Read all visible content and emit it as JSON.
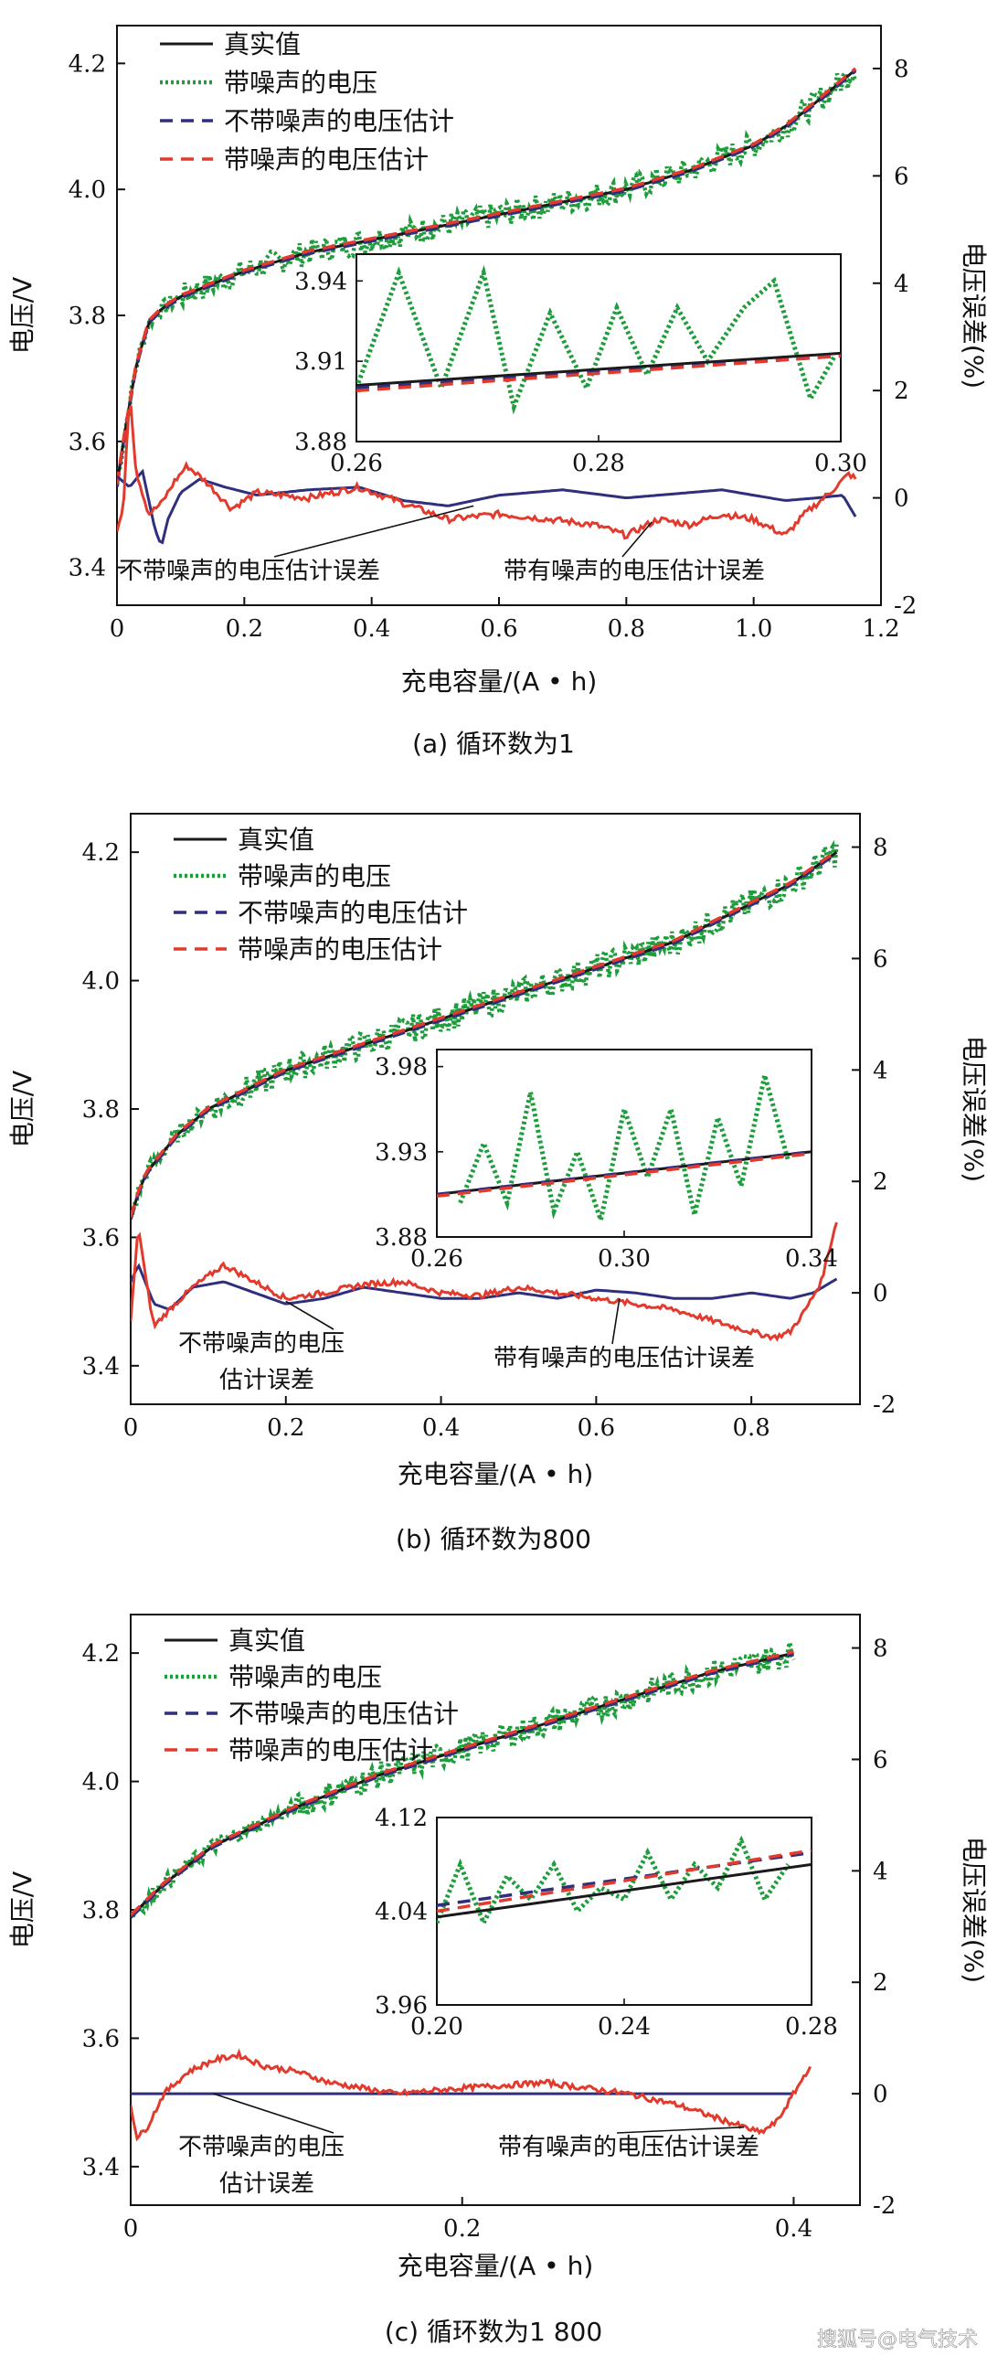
{
  "watermark": "搜狐号@电气技术",
  "chart_data": [
    {
      "type": "line",
      "caption": "(a)  循环数为1",
      "xlabel": "充电容量/(A • h)",
      "ylabel": "电压/V",
      "ylabel_right": "电压误差(%)",
      "xlim": [
        0,
        1.2
      ],
      "ylim": [
        3.34,
        4.26
      ],
      "y2lim": [
        -2,
        8.8
      ],
      "xticks": [
        "0",
        "0.2",
        "0.4",
        "0.6",
        "0.8",
        "1.0",
        "1.2"
      ],
      "yticks": [
        "3.4",
        "3.6",
        "3.8",
        "4.0",
        "4.2"
      ],
      "y2ticks": [
        "-2",
        "0",
        "2",
        "4",
        "6",
        "8"
      ],
      "legend": {
        "placement": "top-left",
        "entries": [
          "真实值",
          "带噪声的电压",
          "不带噪声的电压估计",
          "带噪声的电压估计"
        ]
      },
      "voltage": {
        "x": [
          0,
          0.01,
          0.02,
          0.03,
          0.05,
          0.07,
          0.1,
          0.15,
          0.2,
          0.3,
          0.4,
          0.5,
          0.6,
          0.7,
          0.8,
          0.9,
          1.0,
          1.05,
          1.1,
          1.16
        ],
        "y": [
          3.53,
          3.6,
          3.66,
          3.72,
          3.79,
          3.81,
          3.83,
          3.85,
          3.87,
          3.9,
          3.92,
          3.94,
          3.96,
          3.98,
          4.0,
          4.03,
          4.07,
          4.1,
          4.14,
          4.19
        ],
        "noise_amplitude": 0.02
      },
      "error_curves": [
        {
          "label": "不带噪声的电压估计误差",
          "x": [
            0,
            0.02,
            0.04,
            0.06,
            0.07,
            0.08,
            0.1,
            0.13,
            0.17,
            0.22,
            0.3,
            0.38,
            0.45,
            0.52,
            0.6,
            0.7,
            0.8,
            0.9,
            0.95,
            1.0,
            1.05,
            1.1,
            1.14,
            1.16
          ],
          "y": [
            0.4,
            0.2,
            0.5,
            -0.6,
            -0.9,
            -0.4,
            0.1,
            0.35,
            0.2,
            0.05,
            0.15,
            0.2,
            -0.05,
            -0.15,
            0.05,
            0.15,
            0.0,
            0.1,
            0.15,
            0.05,
            -0.05,
            0.0,
            0.05,
            -0.35
          ]
        },
        {
          "label": "带有噪声的电压估计误差",
          "x": [
            0,
            0.01,
            0.02,
            0.03,
            0.05,
            0.07,
            0.09,
            0.11,
            0.14,
            0.18,
            0.22,
            0.3,
            0.38,
            0.45,
            0.52,
            0.6,
            0.68,
            0.75,
            0.8,
            0.85,
            0.9,
            0.95,
            1.0,
            1.05,
            1.08,
            1.12,
            1.15,
            1.16
          ],
          "y": [
            -0.6,
            -0.2,
            2.0,
            0.5,
            -0.3,
            -0.1,
            0.3,
            0.6,
            0.3,
            -0.2,
            0.1,
            0.0,
            0.2,
            -0.1,
            -0.4,
            -0.3,
            -0.4,
            -0.5,
            -0.7,
            -0.4,
            -0.5,
            -0.3,
            -0.4,
            -0.7,
            -0.3,
            0.1,
            0.45,
            0.35
          ],
          "noise_amplitude": 0.06
        }
      ],
      "annotations": [
        {
          "text": "不带噪声的电压估计误差",
          "target_x": 0.56,
          "target_y2": -0.15
        },
        {
          "text": "带有噪声的电压估计误差",
          "target_x": 0.84,
          "target_y2": -0.45
        }
      ],
      "inset": {
        "xlim": [
          0.26,
          0.3
        ],
        "ylim": [
          3.88,
          3.95
        ],
        "xticks": [
          "0.26",
          "0.28",
          "0.30"
        ],
        "yticks": [
          "3.88",
          "3.91",
          "3.94"
        ],
        "true": {
          "x": [
            0.26,
            0.3
          ],
          "y": [
            3.901,
            3.913
          ]
        },
        "noisy": {
          "x": [
            0.26,
            0.2635,
            0.267,
            0.2705,
            0.273,
            0.276,
            0.279,
            0.2815,
            0.284,
            0.2865,
            0.289,
            0.292,
            0.2945,
            0.2975,
            0.2995
          ],
          "y": [
            3.9,
            3.943,
            3.9,
            3.943,
            3.893,
            3.928,
            3.9,
            3.93,
            3.905,
            3.93,
            3.91,
            3.93,
            3.94,
            3.896,
            3.912
          ]
        },
        "est_clean": {
          "x": [
            0.26,
            0.3
          ],
          "y": [
            3.9,
            3.912
          ]
        },
        "est_noisy": {
          "x": [
            0.26,
            0.3
          ],
          "y": [
            3.899,
            3.912
          ]
        }
      }
    },
    {
      "type": "line",
      "caption": "(b)  循环数为800",
      "xlabel": "充电容量/(A • h)",
      "ylabel": "电压/V",
      "ylabel_right": "电压误差(%)",
      "xlim": [
        0,
        0.94
      ],
      "ylim": [
        3.34,
        4.26
      ],
      "y2lim": [
        -2,
        8.6
      ],
      "xticks": [
        "0",
        "0.2",
        "0.4",
        "0.6",
        "0.8"
      ],
      "yticks": [
        "3.4",
        "3.6",
        "3.8",
        "4.0",
        "4.2"
      ],
      "y2ticks": [
        "-2",
        "0",
        "2",
        "4",
        "6",
        "8"
      ],
      "legend": {
        "placement": "top-left",
        "entries": [
          "真实值",
          "带噪声的电压",
          "不带噪声的电压估计",
          "带噪声的电压估计"
        ]
      },
      "voltage": {
        "x": [
          0,
          0.01,
          0.02,
          0.04,
          0.06,
          0.08,
          0.1,
          0.15,
          0.2,
          0.3,
          0.4,
          0.5,
          0.6,
          0.7,
          0.8,
          0.85,
          0.91
        ],
        "y": [
          3.63,
          3.67,
          3.7,
          3.73,
          3.76,
          3.78,
          3.8,
          3.83,
          3.86,
          3.9,
          3.94,
          3.98,
          4.02,
          4.06,
          4.12,
          4.15,
          4.2
        ],
        "noise_amplitude": 0.022
      },
      "error_curves": [
        {
          "label": "不带噪声的电压估计误差",
          "x": [
            0,
            0.01,
            0.03,
            0.05,
            0.08,
            0.12,
            0.16,
            0.2,
            0.25,
            0.3,
            0.35,
            0.4,
            0.45,
            0.5,
            0.55,
            0.6,
            0.65,
            0.7,
            0.75,
            0.8,
            0.85,
            0.88,
            0.91
          ],
          "y": [
            0.2,
            0.5,
            -0.2,
            -0.3,
            0.1,
            0.2,
            0.0,
            -0.2,
            -0.1,
            0.1,
            0.0,
            -0.1,
            -0.1,
            0.0,
            -0.1,
            0.05,
            0.0,
            -0.1,
            -0.1,
            0.0,
            -0.1,
            0.0,
            0.25
          ]
        },
        {
          "label": "带有噪声的电压估计误差",
          "x": [
            0,
            0.01,
            0.02,
            0.03,
            0.05,
            0.08,
            0.12,
            0.16,
            0.2,
            0.25,
            0.3,
            0.35,
            0.4,
            0.45,
            0.5,
            0.55,
            0.6,
            0.65,
            0.7,
            0.75,
            0.8,
            0.83,
            0.85,
            0.87,
            0.89,
            0.91
          ],
          "y": [
            -0.5,
            1.2,
            0.2,
            -0.6,
            -0.3,
            0.1,
            0.5,
            0.2,
            -0.1,
            0.0,
            0.15,
            0.2,
            0.0,
            -0.05,
            0.1,
            0.0,
            -0.1,
            -0.2,
            -0.3,
            -0.5,
            -0.7,
            -0.8,
            -0.7,
            -0.3,
            0.2,
            1.3
          ],
          "noise_amplitude": 0.05
        }
      ],
      "annotations": [
        {
          "text": "不带噪声的电压",
          "text2": "估计误差",
          "target_x": 0.2,
          "target_y2": -0.15
        },
        {
          "text": "带有噪声的电压估计误差",
          "target_x": 0.63,
          "target_y2": -0.1
        }
      ],
      "inset": {
        "xlim": [
          0.26,
          0.34
        ],
        "ylim": [
          3.88,
          3.99
        ],
        "xticks": [
          "0.26",
          "0.30",
          "0.34"
        ],
        "yticks": [
          "3.88",
          "3.93",
          "3.98"
        ],
        "true": {
          "x": [
            0.26,
            0.34
          ],
          "y": [
            3.905,
            3.93
          ]
        },
        "noisy": {
          "x": [
            0.265,
            0.27,
            0.275,
            0.28,
            0.285,
            0.29,
            0.295,
            0.3,
            0.305,
            0.31,
            0.315,
            0.32,
            0.325,
            0.33,
            0.335
          ],
          "y": [
            3.9,
            3.935,
            3.9,
            3.965,
            3.895,
            3.93,
            3.89,
            3.955,
            3.915,
            3.955,
            3.893,
            3.95,
            3.91,
            3.975,
            3.925
          ]
        },
        "est_clean": {
          "x": [
            0.26,
            0.34
          ],
          "y": [
            3.905,
            3.93
          ]
        },
        "est_noisy": {
          "x": [
            0.26,
            0.34
          ],
          "y": [
            3.904,
            3.929
          ]
        }
      }
    },
    {
      "type": "line",
      "caption": "(c)  循环数为1 800",
      "xlabel": "充电容量/(A • h)",
      "ylabel": "电压/V",
      "ylabel_right": "电压误差(%)",
      "xlim": [
        0,
        0.44
      ],
      "ylim": [
        3.34,
        4.26
      ],
      "y2lim": [
        -2,
        8.6
      ],
      "xticks": [
        "0",
        "0.2",
        "0.4"
      ],
      "yticks": [
        "3.4",
        "3.6",
        "3.8",
        "4.0",
        "4.2"
      ],
      "y2ticks": [
        "-2",
        "0",
        "2",
        "4",
        "6",
        "8"
      ],
      "legend": {
        "placement": "top-left",
        "entries": [
          "真实值",
          "带噪声的电压",
          "不带噪声的电压估计",
          "带噪声的电压估计"
        ]
      },
      "voltage": {
        "x": [
          0,
          0.02,
          0.05,
          0.1,
          0.15,
          0.2,
          0.25,
          0.3,
          0.35,
          0.4
        ],
        "y": [
          3.79,
          3.84,
          3.9,
          3.96,
          4.01,
          4.05,
          4.09,
          4.13,
          4.17,
          4.2
        ],
        "noise_amplitude": 0.02
      },
      "error_curves": [
        {
          "label": "不带噪声的电压估计误差",
          "x": [
            0,
            0.05,
            0.1,
            0.15,
            0.2,
            0.25,
            0.3,
            0.35,
            0.4
          ],
          "y": [
            0.0,
            0.0,
            0.0,
            0.0,
            0.0,
            0.0,
            0.0,
            0.0,
            0.0
          ]
        },
        {
          "label": "带有噪声的电压估计误差",
          "x": [
            0,
            0.004,
            0.01,
            0.02,
            0.035,
            0.05,
            0.065,
            0.08,
            0.1,
            0.12,
            0.14,
            0.16,
            0.2,
            0.25,
            0.3,
            0.33,
            0.35,
            0.37,
            0.38,
            0.39,
            0.4,
            0.41
          ],
          "y": [
            -0.2,
            -0.8,
            -0.6,
            0.0,
            0.4,
            0.6,
            0.7,
            0.5,
            0.4,
            0.2,
            0.1,
            0.0,
            0.1,
            0.2,
            0.0,
            -0.2,
            -0.4,
            -0.6,
            -0.7,
            -0.5,
            0.0,
            0.5
          ],
          "noise_amplitude": 0.05
        }
      ],
      "annotations": [
        {
          "text": "不带噪声的电压",
          "text2": "估计误差",
          "target_x": 0.05,
          "target_y2": 0.0
        },
        {
          "text": "带有噪声的电压估计误差",
          "target_x": 0.37,
          "target_y2": -0.6
        }
      ],
      "inset": {
        "xlim": [
          0.2,
          0.28
        ],
        "ylim": [
          3.96,
          4.12
        ],
        "xticks": [
          "0.20",
          "0.24",
          "0.28"
        ],
        "yticks": [
          "3.96",
          "4.04",
          "4.12"
        ],
        "true": {
          "x": [
            0.2,
            0.28
          ],
          "y": [
            4.035,
            4.08
          ]
        },
        "noisy": {
          "x": [
            0.2,
            0.205,
            0.21,
            0.215,
            0.22,
            0.225,
            0.23,
            0.235,
            0.24,
            0.245,
            0.25,
            0.255,
            0.26,
            0.265,
            0.27,
            0.275
          ],
          "y": [
            4.03,
            4.08,
            4.03,
            4.07,
            4.05,
            4.08,
            4.04,
            4.06,
            4.05,
            4.09,
            4.05,
            4.08,
            4.06,
            4.1,
            4.05,
            4.08
          ]
        },
        "est_clean": {
          "x": [
            0.2,
            0.28
          ],
          "y": [
            4.045,
            4.09
          ]
        },
        "est_noisy": {
          "x": [
            0.2,
            0.28
          ],
          "y": [
            4.04,
            4.092
          ]
        }
      }
    }
  ]
}
